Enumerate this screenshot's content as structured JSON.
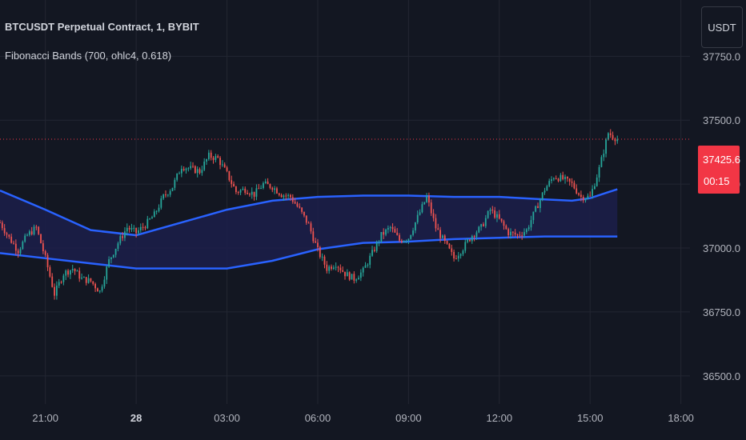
{
  "header": {
    "symbol_title": "BTCUSDT Perpetual Contract, 1, BYBIT",
    "indicator": "Fibonacci Bands (700, ohlc4, 0.618)"
  },
  "currency_button": "USDT",
  "last_price": {
    "value_label": "37425.6",
    "countdown": "00:15",
    "value": 37425.6
  },
  "colors": {
    "background": "#131722",
    "grid": "#232632",
    "axis_text": "#b2b5be",
    "up_candle": "#26a69a",
    "down_candle": "#ef5350",
    "band_line": "#2962ff",
    "band_fill": "#1c1f4a",
    "last_price": "#f23645"
  },
  "chart_data": {
    "type": "line",
    "y_axis": {
      "ticks": [
        "37750.0",
        "37500.0",
        "37250.0",
        "37000.0",
        "36750.0",
        "36500.0"
      ],
      "tick_values": [
        37750,
        37500,
        37250,
        37000,
        36750,
        36500
      ],
      "range": [
        36390,
        37970
      ]
    },
    "x_axis": {
      "ticks": [
        "21:00",
        "28",
        "03:00",
        "06:00",
        "09:00",
        "12:00",
        "15:00",
        "18:00"
      ],
      "tick_hours": [
        -3,
        0,
        3,
        6,
        9,
        12,
        15,
        18
      ],
      "range": [
        -4.5,
        18.3
      ],
      "bold_tick": "28"
    },
    "price_path": {
      "hours": [
        -4.5,
        -4.2,
        -3.9,
        -3.6,
        -3.3,
        -3.0,
        -2.7,
        -2.4,
        -2.1,
        -1.8,
        -1.5,
        -1.2,
        -0.9,
        -0.6,
        -0.3,
        0.0,
        0.3,
        0.6,
        0.9,
        1.2,
        1.5,
        1.8,
        2.1,
        2.4,
        2.7,
        3.0,
        3.3,
        3.6,
        3.9,
        4.2,
        4.5,
        4.8,
        5.1,
        5.4,
        5.7,
        6.0,
        6.3,
        6.6,
        6.9,
        7.2,
        7.5,
        7.8,
        8.1,
        8.4,
        8.7,
        9.0,
        9.3,
        9.6,
        9.9,
        10.2,
        10.5,
        10.8,
        11.1,
        11.4,
        11.7,
        12.0,
        12.3,
        12.6,
        12.9,
        13.2,
        13.5,
        13.8,
        14.1,
        14.4,
        14.7,
        15.0,
        15.3,
        15.6,
        15.9
      ],
      "close": [
        37100,
        37040,
        36990,
        37050,
        37080,
        36960,
        36820,
        36900,
        36920,
        36880,
        36870,
        36830,
        36950,
        37020,
        37080,
        37060,
        37090,
        37130,
        37200,
        37240,
        37320,
        37310,
        37300,
        37360,
        37350,
        37290,
        37220,
        37230,
        37210,
        37250,
        37240,
        37210,
        37200,
        37150,
        37090,
        36990,
        36920,
        36940,
        36900,
        36880,
        36910,
        36980,
        37050,
        37080,
        37030,
        37040,
        37120,
        37200,
        37080,
        37020,
        36960,
        37000,
        37050,
        37080,
        37150,
        37110,
        37060,
        37050,
        37070,
        37150,
        37230,
        37280,
        37270,
        37250,
        37200,
        37200,
        37310,
        37450,
        37425.6
      ]
    },
    "series": [
      {
        "hours": [
          -4.5,
          -3.0,
          -1.5,
          0.0,
          1.5,
          3.0,
          4.5,
          6.0,
          7.5,
          9.0,
          10.5,
          12.0,
          13.5,
          14.4,
          15.0,
          15.9
        ],
        "values": [
          37225,
          37150,
          37070,
          37050,
          37100,
          37150,
          37185,
          37200,
          37205,
          37205,
          37200,
          37200,
          37190,
          37185,
          37195,
          37230
        ]
      },
      {
        "hours": [
          -4.5,
          -3.0,
          -1.5,
          0.0,
          1.5,
          3.0,
          4.5,
          6.0,
          7.5,
          9.0,
          10.5,
          12.0,
          13.5,
          15.0,
          15.9
        ],
        "values": [
          36980,
          36960,
          36940,
          36920,
          36920,
          36920,
          36950,
          36995,
          37020,
          37025,
          37035,
          37040,
          37045,
          37045,
          37045
        ]
      }
    ]
  }
}
